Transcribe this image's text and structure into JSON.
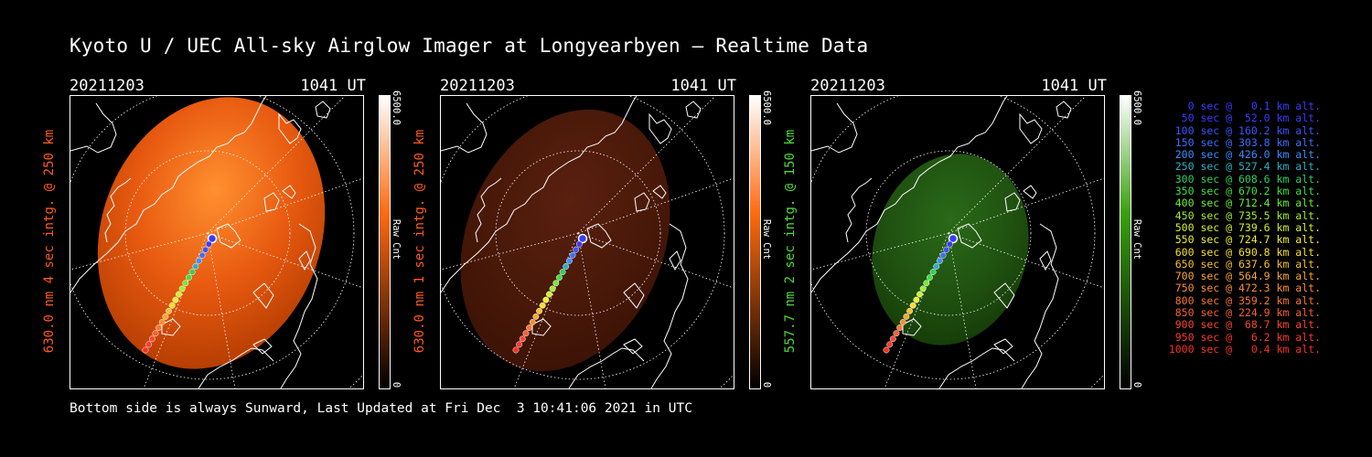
{
  "title": "Kyoto U / UEC All-sky Airglow Imager at Longyearbyen — Realtime Data",
  "footer": "Bottom side is always Sunward, Last Updated at Fri Dec  3 10:41:06 2021 in UTC",
  "panels": [
    {
      "date": "20211203",
      "time": "1041 UT",
      "ylabel": "630.0 nm 4 sec intg. @ 250 km",
      "ylabel_color": "#ff5a1e",
      "cbar_max": "6500.0",
      "cbar_label": "Raw Cnt",
      "cbar_min": "0",
      "cbar_color": "#ff6a10",
      "intensity": "bright"
    },
    {
      "date": "20211203",
      "time": "1041 UT",
      "ylabel": "630.0 nm 1 sec intg. @ 250 km",
      "ylabel_color": "#ff5a1e",
      "cbar_max": "6500.0",
      "cbar_label": "Raw Cnt",
      "cbar_min": "0",
      "cbar_color": "#ff6a10",
      "intensity": "dim"
    },
    {
      "date": "20211203",
      "time": "1041 UT",
      "ylabel": "557.7 nm 2 sec intg. @ 150 km",
      "ylabel_color": "#4ddb3a",
      "cbar_max": "6500.0",
      "cbar_label": "Raw Cnt",
      "cbar_min": "0",
      "cbar_color": "#3aa010",
      "intensity": "green"
    }
  ],
  "legend": [
    {
      "text": "0 sec @   0.1 km alt.",
      "color": "#3a3aff"
    },
    {
      "text": "50 sec @  52.0 km alt.",
      "color": "#3a3aff"
    },
    {
      "text": "100 sec @ 160.2 km alt.",
      "color": "#3a55ff"
    },
    {
      "text": "150 sec @ 303.8 km alt.",
      "color": "#3a70ff"
    },
    {
      "text": "200 sec @ 426.0 km alt.",
      "color": "#3a90ff"
    },
    {
      "text": "250 sec @ 527.4 km alt.",
      "color": "#2ab0c8"
    },
    {
      "text": "300 sec @ 608.6 km alt.",
      "color": "#30d060"
    },
    {
      "text": "350 sec @ 670.2 km alt.",
      "color": "#40e040"
    },
    {
      "text": "400 sec @ 712.4 km alt.",
      "color": "#70ee30"
    },
    {
      "text": "450 sec @ 735.5 km alt.",
      "color": "#a0f030"
    },
    {
      "text": "500 sec @ 739.6 km alt.",
      "color": "#d0f030"
    },
    {
      "text": "550 sec @ 724.7 km alt.",
      "color": "#f0f030"
    },
    {
      "text": "600 sec @ 690.8 km alt.",
      "color": "#f8e030"
    },
    {
      "text": "650 sec @ 637.6 km alt.",
      "color": "#f8c030"
    },
    {
      "text": "700 sec @ 564.9 km alt.",
      "color": "#f8a830"
    },
    {
      "text": "750 sec @ 472.3 km alt.",
      "color": "#f89030"
    },
    {
      "text": "800 sec @ 359.2 km alt.",
      "color": "#f87830"
    },
    {
      "text": "850 sec @ 224.9 km alt.",
      "color": "#f86030"
    },
    {
      "text": "900 sec @  68.7 km alt.",
      "color": "#f84830"
    },
    {
      "text": "950 sec @   6.2 km alt.",
      "color": "#f83a30"
    },
    {
      "text": "1000 sec @   0.4 km alt.",
      "color": "#f83020"
    }
  ]
}
